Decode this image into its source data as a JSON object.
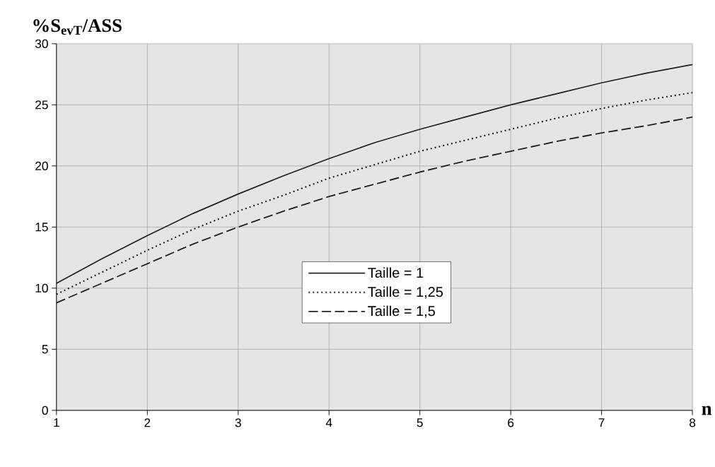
{
  "chart_data": {
    "type": "line",
    "ylabel": "%S$_{evT}$/ASS",
    "xlabel": "n",
    "x": [
      1,
      1.5,
      2,
      2.5,
      3,
      3.5,
      4,
      4.5,
      5,
      5.5,
      6,
      6.5,
      7,
      7.5,
      8
    ],
    "series": [
      {
        "name": "Taille = 1",
        "color": "#222222",
        "line_style": "solid",
        "values": [
          10.4,
          12.4,
          14.3,
          16.1,
          17.7,
          19.2,
          20.6,
          21.9,
          23.0,
          24.0,
          25.0,
          25.9,
          26.8,
          27.6,
          28.3
        ]
      },
      {
        "name": "Taille = 1,25",
        "color": "#222222",
        "line_style": "dotted",
        "values": [
          9.5,
          11.3,
          13.1,
          14.8,
          16.3,
          17.6,
          19.0,
          20.1,
          21.2,
          22.1,
          23.0,
          23.9,
          24.7,
          25.4,
          26.0
        ]
      },
      {
        "name": "Taille = 1,5",
        "color": "#222222",
        "line_style": "dashed",
        "values": [
          8.8,
          10.4,
          12.0,
          13.6,
          15.0,
          16.3,
          17.5,
          18.5,
          19.5,
          20.4,
          21.2,
          22.0,
          22.7,
          23.3,
          24.0
        ]
      }
    ],
    "xlim": [
      1,
      8
    ],
    "ylim": [
      0,
      30
    ],
    "xticks": [
      1,
      2,
      3,
      4,
      5,
      6,
      7,
      8
    ],
    "yticks": [
      0,
      5,
      10,
      15,
      20,
      25,
      30
    ],
    "grid": true,
    "legend": "center"
  }
}
